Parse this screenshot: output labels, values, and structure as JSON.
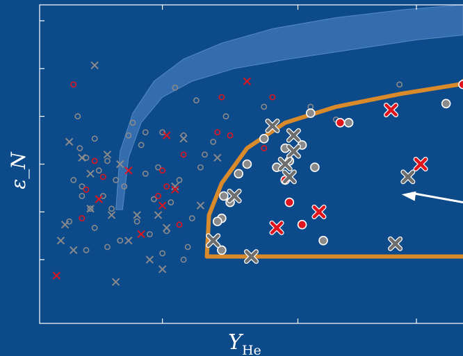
{
  "chart_data": {
    "type": "scatter",
    "title": "",
    "xlabel": "Y_He",
    "xlabel_main": "Y",
    "xlabel_sub": "He",
    "ylabel": "ε_N",
    "xlim": [
      0,
      10
    ],
    "ylim": [
      0,
      10
    ],
    "grid": false,
    "legend": "none",
    "colors": {
      "background": "#0d4a8a",
      "axes": "#ffffff",
      "band_fill": "#4f86c6",
      "region_outline": "#d98a2b",
      "grey_marker": "#8a8a8a",
      "red_marker": "#e0141c",
      "arrow": "#ffffff"
    },
    "band": {
      "lower": [
        [
          1.96,
          3.57
        ],
        [
          2.1,
          5.2
        ],
        [
          2.4,
          6.3
        ],
        [
          2.9,
          7.1
        ],
        [
          3.6,
          7.6
        ],
        [
          4.6,
          8.0
        ],
        [
          5.9,
          8.3
        ],
        [
          7.4,
          8.6
        ],
        [
          8.9,
          8.9
        ],
        [
          10.0,
          9.05
        ]
      ],
      "upper": [
        [
          1.8,
          3.57
        ],
        [
          1.9,
          5.4
        ],
        [
          2.2,
          6.6
        ],
        [
          2.7,
          7.6
        ],
        [
          3.4,
          8.3
        ],
        [
          4.3,
          8.8
        ],
        [
          5.5,
          9.25
        ],
        [
          7.0,
          9.6
        ],
        [
          8.6,
          9.85
        ],
        [
          10.0,
          10.0
        ]
      ]
    },
    "region": {
      "boundary": [
        [
          3.95,
          2.1
        ],
        [
          4.0,
          3.4
        ],
        [
          4.3,
          4.4
        ],
        [
          4.9,
          5.5
        ],
        [
          5.8,
          6.3
        ],
        [
          7.0,
          6.8
        ],
        [
          8.5,
          7.2
        ],
        [
          9.9,
          7.5
        ],
        [
          10.2,
          7.8
        ],
        [
          10.2,
          2.1
        ],
        [
          3.95,
          2.1
        ]
      ]
    },
    "arrow": {
      "from": [
        10.0,
        3.8
      ],
      "to": [
        8.55,
        4.05
      ]
    },
    "series": [
      {
        "marker": "small-open-circle-grey",
        "points": [
          [
            0.8,
            4.5
          ],
          [
            0.9,
            6.5
          ],
          [
            0.95,
            5.5
          ],
          [
            1.0,
            4.3
          ],
          [
            1.0,
            4.0
          ],
          [
            1.1,
            5.2
          ],
          [
            1.2,
            3.6
          ],
          [
            1.3,
            5.8
          ],
          [
            1.4,
            4.8
          ],
          [
            1.5,
            4.0
          ],
          [
            1.6,
            5.1
          ],
          [
            1.7,
            3.6
          ],
          [
            1.8,
            4.5
          ],
          [
            1.9,
            2.6
          ],
          [
            2.0,
            4.3
          ],
          [
            2.1,
            5.9
          ],
          [
            2.2,
            6.3
          ],
          [
            2.3,
            3.2
          ],
          [
            2.4,
            5.6
          ],
          [
            2.5,
            4.7
          ],
          [
            2.6,
            2.8
          ],
          [
            2.7,
            3.9
          ],
          [
            2.8,
            4.9
          ],
          [
            2.9,
            6.0
          ],
          [
            3.0,
            2.9
          ],
          [
            3.1,
            3.8
          ],
          [
            3.2,
            7.4
          ],
          [
            3.3,
            4.5
          ],
          [
            3.4,
            5.9
          ],
          [
            3.5,
            2.4
          ],
          [
            3.6,
            3.3
          ],
          [
            3.7,
            7.0
          ],
          [
            3.8,
            4.9
          ],
          [
            3.9,
            5.3
          ],
          [
            1.3,
            3.0
          ],
          [
            1.6,
            2.4
          ],
          [
            2.5,
            6.0
          ],
          [
            3.4,
            2.0
          ],
          [
            4.1,
            5.7
          ],
          [
            4.4,
            6.5
          ],
          [
            5.3,
            6.8
          ],
          [
            6.4,
            6.8
          ],
          [
            7.0,
            6.4
          ],
          [
            8.5,
            7.5
          ],
          [
            10.3,
            9.0
          ],
          [
            0.7,
            3.2
          ],
          [
            1.1,
            2.3
          ],
          [
            2.9,
            2.2
          ]
        ]
      },
      {
        "marker": "small-open-circle-red",
        "points": [
          [
            0.8,
            7.5
          ],
          [
            1.1,
            4.2
          ],
          [
            1.3,
            5.1
          ],
          [
            1.5,
            4.6
          ],
          [
            2.8,
            4.0
          ],
          [
            2.9,
            4.8
          ],
          [
            3.0,
            4.3
          ],
          [
            3.3,
            3.1
          ],
          [
            3.4,
            5.3
          ],
          [
            4.2,
            6.0
          ],
          [
            4.3,
            7.1
          ],
          [
            5.5,
            7.1
          ],
          [
            1.0,
            3.3
          ],
          [
            4.5,
            5.9
          ],
          [
            5.3,
            5.5
          ]
        ]
      },
      {
        "marker": "small-x-grey",
        "points": [
          [
            1.3,
            8.1
          ],
          [
            0.7,
            5.7
          ],
          [
            1.0,
            5.2
          ],
          [
            1.2,
            4.7
          ],
          [
            1.6,
            5.3
          ],
          [
            1.7,
            3.4
          ],
          [
            2.1,
            2.6
          ],
          [
            2.8,
            3.4
          ],
          [
            3.2,
            4.3
          ],
          [
            3.4,
            5.8
          ],
          [
            3.8,
            3.7
          ],
          [
            2.9,
            1.7
          ],
          [
            0.5,
            2.6
          ],
          [
            1.2,
            3.6
          ],
          [
            1.9,
            5.0
          ],
          [
            2.3,
            3.4
          ],
          [
            0.8,
            2.3
          ],
          [
            1.8,
            1.3
          ],
          [
            0.6,
            3.1
          ],
          [
            3.0,
            3.0
          ],
          [
            4.2,
            5.2
          ],
          [
            2.6,
            2.0
          ]
        ]
      },
      {
        "marker": "small-x-red",
        "points": [
          [
            4.9,
            7.6
          ],
          [
            3.0,
            5.9
          ],
          [
            2.1,
            4.8
          ],
          [
            1.4,
            3.9
          ],
          [
            2.9,
            3.7
          ],
          [
            3.2,
            4.2
          ],
          [
            2.4,
            2.8
          ],
          [
            0.4,
            1.5
          ]
        ]
      },
      {
        "marker": "large-filled-circle-grey",
        "points": [
          [
            9.6,
            6.9
          ],
          [
            7.3,
            6.3
          ],
          [
            6.4,
            6.6
          ],
          [
            5.3,
            5.8
          ],
          [
            5.8,
            5.5
          ],
          [
            6.2,
            5.6
          ],
          [
            5.6,
            4.9
          ],
          [
            5.9,
            5.1
          ],
          [
            4.9,
            5.0
          ],
          [
            4.7,
            4.7
          ],
          [
            4.5,
            3.8
          ],
          [
            4.35,
            4.0
          ],
          [
            4.3,
            3.3
          ],
          [
            4.2,
            3.2
          ],
          [
            4.3,
            2.3
          ],
          [
            6.7,
            2.6
          ],
          [
            6.5,
            4.9
          ]
        ]
      },
      {
        "marker": "large-filled-circle-red",
        "points": [
          [
            7.1,
            6.3
          ],
          [
            10.0,
            7.5
          ],
          [
            5.8,
            4.5
          ],
          [
            5.9,
            3.8
          ],
          [
            6.2,
            3.1
          ]
        ]
      },
      {
        "marker": "large-x-grey",
        "points": [
          [
            6.0,
            5.4
          ],
          [
            5.8,
            5.0
          ],
          [
            5.9,
            4.6
          ],
          [
            6.0,
            5.9
          ],
          [
            5.5,
            6.2
          ],
          [
            4.6,
            4.0
          ],
          [
            4.1,
            2.6
          ],
          [
            5.0,
            2.1
          ],
          [
            8.4,
            2.5
          ],
          [
            8.7,
            4.6
          ]
        ]
      },
      {
        "marker": "large-x-red",
        "points": [
          [
            8.3,
            6.7
          ],
          [
            9.0,
            5.0
          ],
          [
            6.6,
            3.5
          ],
          [
            5.6,
            3.0
          ]
        ]
      }
    ]
  }
}
